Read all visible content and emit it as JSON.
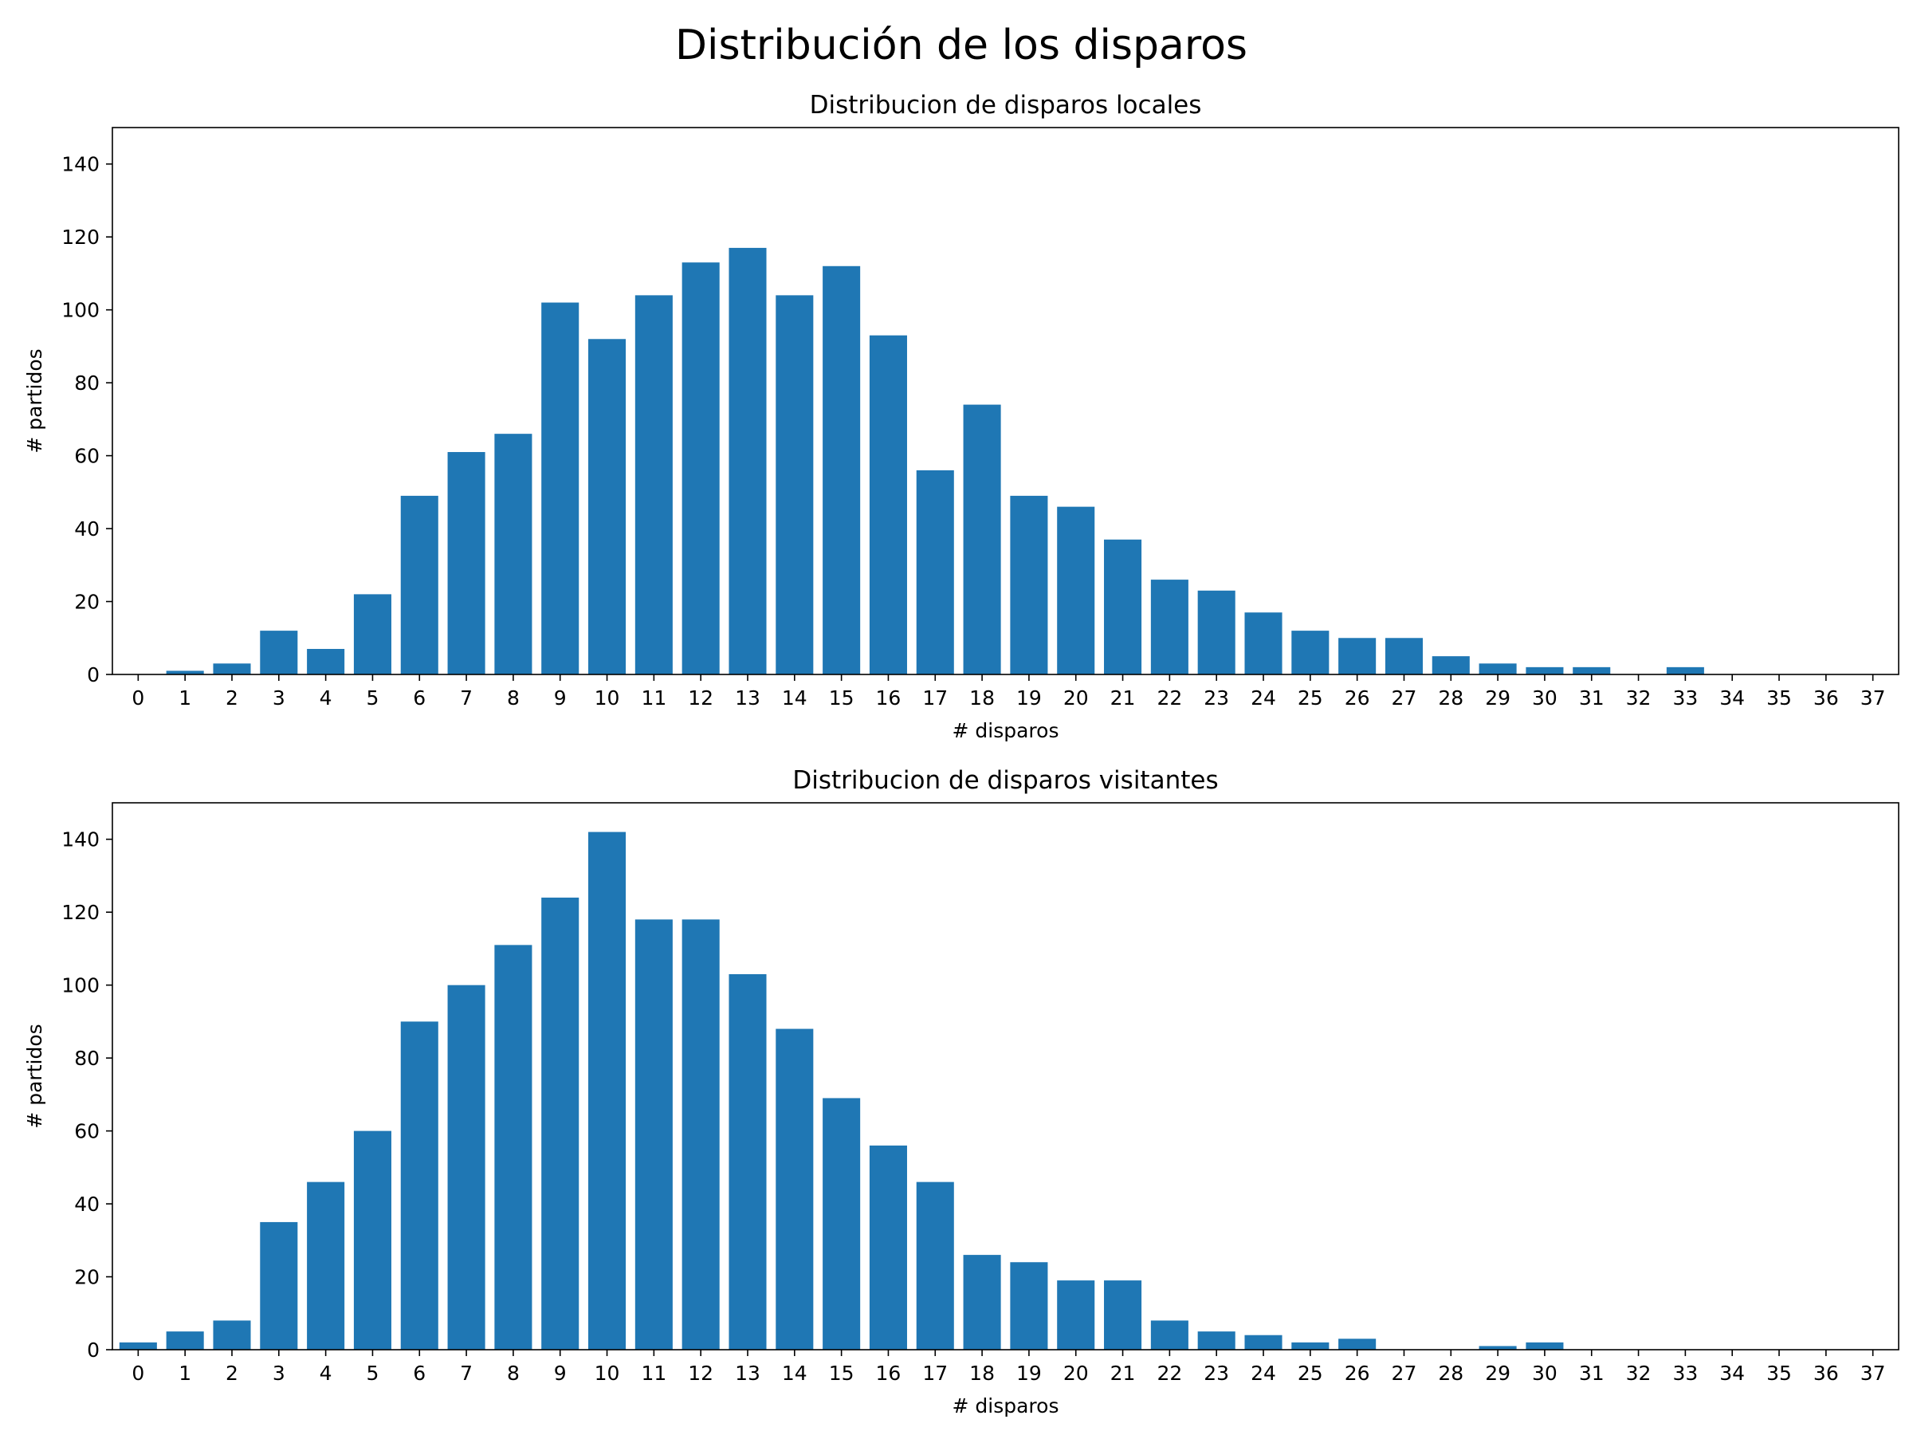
{
  "figure": {
    "suptitle": "Distribución de los disparos"
  },
  "chart_data": [
    {
      "type": "bar",
      "title": "Distribucion de disparos locales",
      "xlabel": "# disparos",
      "ylabel": "# partidos",
      "ylim": [
        0,
        150
      ],
      "yticks": [
        0,
        20,
        40,
        60,
        80,
        100,
        120,
        140
      ],
      "categories": [
        "0",
        "1",
        "2",
        "3",
        "4",
        "5",
        "6",
        "7",
        "8",
        "9",
        "10",
        "11",
        "12",
        "13",
        "14",
        "15",
        "16",
        "17",
        "18",
        "19",
        "20",
        "21",
        "22",
        "23",
        "24",
        "25",
        "26",
        "27",
        "28",
        "29",
        "30",
        "31",
        "32",
        "33",
        "34",
        "35",
        "36",
        "37"
      ],
      "values": [
        0,
        1,
        3,
        12,
        7,
        22,
        49,
        61,
        66,
        102,
        92,
        104,
        113,
        117,
        104,
        112,
        93,
        56,
        74,
        49,
        46,
        37,
        26,
        23,
        17,
        12,
        10,
        10,
        5,
        3,
        2,
        2,
        0,
        2,
        0,
        0,
        0,
        0
      ],
      "color": "#1f77b4",
      "grid": false,
      "legend": "none"
    },
    {
      "type": "bar",
      "title": "Distribucion de disparos visitantes",
      "xlabel": "# disparos",
      "ylabel": "# partidos",
      "ylim": [
        0,
        150
      ],
      "yticks": [
        0,
        20,
        40,
        60,
        80,
        100,
        120,
        140
      ],
      "categories": [
        "0",
        "1",
        "2",
        "3",
        "4",
        "5",
        "6",
        "7",
        "8",
        "9",
        "10",
        "11",
        "12",
        "13",
        "14",
        "15",
        "16",
        "17",
        "18",
        "19",
        "20",
        "21",
        "22",
        "23",
        "24",
        "25",
        "26",
        "27",
        "28",
        "29",
        "30",
        "31",
        "32",
        "33",
        "34",
        "35",
        "36",
        "37"
      ],
      "values": [
        2,
        5,
        8,
        35,
        46,
        60,
        90,
        100,
        111,
        124,
        142,
        118,
        118,
        103,
        88,
        69,
        56,
        46,
        26,
        24,
        19,
        19,
        8,
        5,
        4,
        2,
        3,
        0,
        0,
        1,
        2,
        0,
        0,
        0,
        0,
        0,
        0,
        0
      ],
      "color": "#1f77b4",
      "grid": false,
      "legend": "none"
    }
  ]
}
